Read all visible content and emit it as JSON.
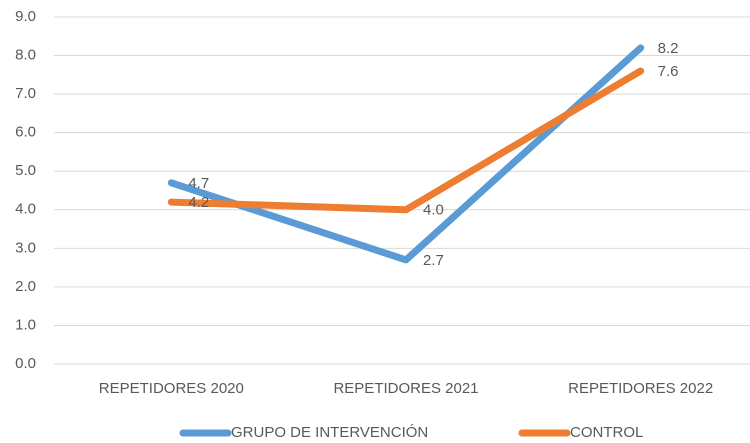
{
  "chart_data": {
    "type": "line",
    "categories": [
      "REPETIDORES 2020",
      "REPETIDORES 2021",
      "REPETIDORES 2022"
    ],
    "series": [
      {
        "name": "GRUPO DE INTERVENCIÓN",
        "color": "#5b9bd5",
        "values": [
          4.7,
          2.7,
          8.2
        ],
        "value_labels": [
          "4.7",
          "2.7",
          "8.2"
        ]
      },
      {
        "name": "CONTROL",
        "color": "#ed7d31",
        "values": [
          4.2,
          4.0,
          7.6
        ],
        "value_labels": [
          "4.2",
          "4.0",
          "7.6"
        ]
      }
    ],
    "ylim": [
      0,
      9
    ],
    "yticks": [
      {
        "value": 0,
        "label": "0.0"
      },
      {
        "value": 1,
        "label": "1.0"
      },
      {
        "value": 2,
        "label": "2.0"
      },
      {
        "value": 3,
        "label": "3.0"
      },
      {
        "value": 4,
        "label": "4.0"
      },
      {
        "value": 5,
        "label": "5.0"
      },
      {
        "value": 6,
        "label": "6.0"
      },
      {
        "value": 7,
        "label": "7.0"
      },
      {
        "value": 8,
        "label": "8.0"
      },
      {
        "value": 9,
        "label": "9.0"
      }
    ],
    "grid": true,
    "legend": "bottom"
  }
}
